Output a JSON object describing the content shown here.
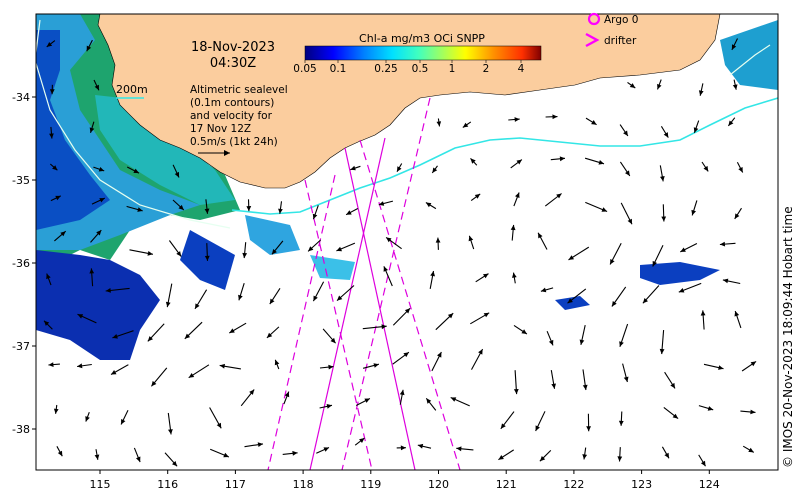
{
  "map": {
    "date": "18-Nov-2023",
    "time": "04:30Z",
    "colorbar": {
      "title": "Chl-a mg/m3 OCi SNPP",
      "ticks": [
        "0.05",
        "0.1",
        "0.25",
        "0.5",
        "1",
        "2",
        "4"
      ],
      "colors": [
        "#00007f",
        "#0000ff",
        "#0080ff",
        "#00e0ff",
        "#40ffbf",
        "#a0ff60",
        "#ffff00",
        "#ff9000",
        "#ff3000",
        "#800000"
      ]
    },
    "isobath_label": "200m",
    "legend_text": [
      "Altimetric sealevel",
      "(0.1m contours)",
      "and velocity for",
      "17 Nov 12Z",
      "0.5m/s (1kt 24h)"
    ],
    "argo_label": "Argo 0",
    "drifter_label": "drifter",
    "credit": "© IMOS 20-Nov-2023 18:09:44 Hobart time",
    "lon_ticks": [
      "115",
      "116",
      "117",
      "118",
      "119",
      "120",
      "121",
      "122",
      "123",
      "124"
    ],
    "lat_ticks": [
      "-34",
      "-35",
      "-36",
      "-37",
      "-38"
    ],
    "colors": {
      "land": "#fbcd9e",
      "ocean_no_data": "#ffffff",
      "satellite_track": "#dd00dd",
      "front_line": "#33e6e6",
      "isobath": "#e6fff0",
      "argo": "#ff00ff",
      "drifter": "#ff00ff"
    }
  }
}
